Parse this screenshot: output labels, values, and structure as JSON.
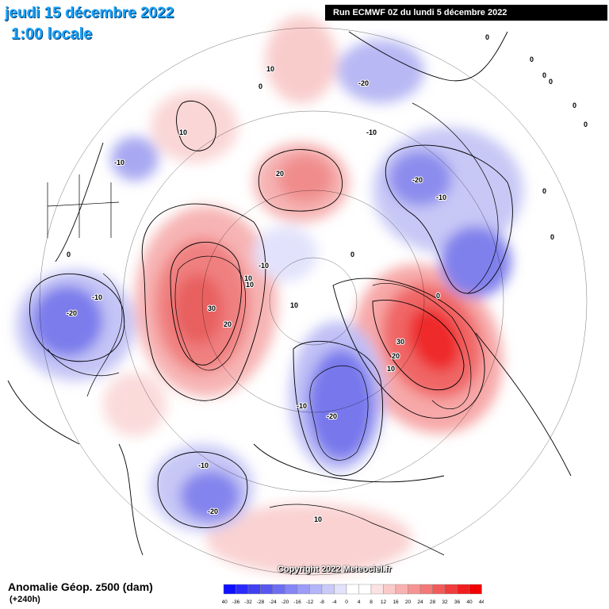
{
  "header": {
    "date": "jeudi 15 décembre 2022",
    "time": "1:00 locale",
    "run": "Run ECMWF 0Z du lundi 5 décembre 2022"
  },
  "footer": {
    "title": "Anomalie Géop. z500 (dam)",
    "subtitle": "(+240h)",
    "copyright": "Copyright 2022 Meteociel.fr"
  },
  "legend": {
    "ticks": [
      "-40",
      "-36",
      "-32",
      "-28",
      "-24",
      "-20",
      "-16",
      "-12",
      "-8",
      "-4",
      "0",
      "4",
      "8",
      "12",
      "16",
      "20",
      "24",
      "28",
      "32",
      "36",
      "40",
      "44"
    ],
    "colors": [
      "#1010ff",
      "#2a2aff",
      "#4040f0",
      "#5858f0",
      "#6e6ef2",
      "#8585f4",
      "#9c9cf6",
      "#b4b4f8",
      "#cacafa",
      "#e2e2fc",
      "#ffffff",
      "#ffffff",
      "#fce2e2",
      "#facaca",
      "#f8b0b0",
      "#f69494",
      "#f47878",
      "#f25a5a",
      "#f03c3c",
      "#f01e1e",
      "#f00000"
    ]
  },
  "contour_labels": [
    "10",
    "0",
    "-20",
    "0",
    "0",
    "0",
    "0",
    "0",
    "0",
    "10",
    "-10",
    "20",
    "-10",
    "-20",
    "-10",
    "0",
    "0",
    "0",
    "-20",
    "-10",
    "10",
    "10",
    "-10",
    "30",
    "20",
    "0",
    "0",
    "10",
    "30",
    "20",
    "10",
    "-10",
    "-20",
    "-10",
    "-20",
    "10"
  ],
  "colors": {
    "title": "#1aa3ff",
    "positive_anomaly": "#f04040",
    "negative_anomaly": "#5a5af0",
    "coastline": "#000000"
  }
}
